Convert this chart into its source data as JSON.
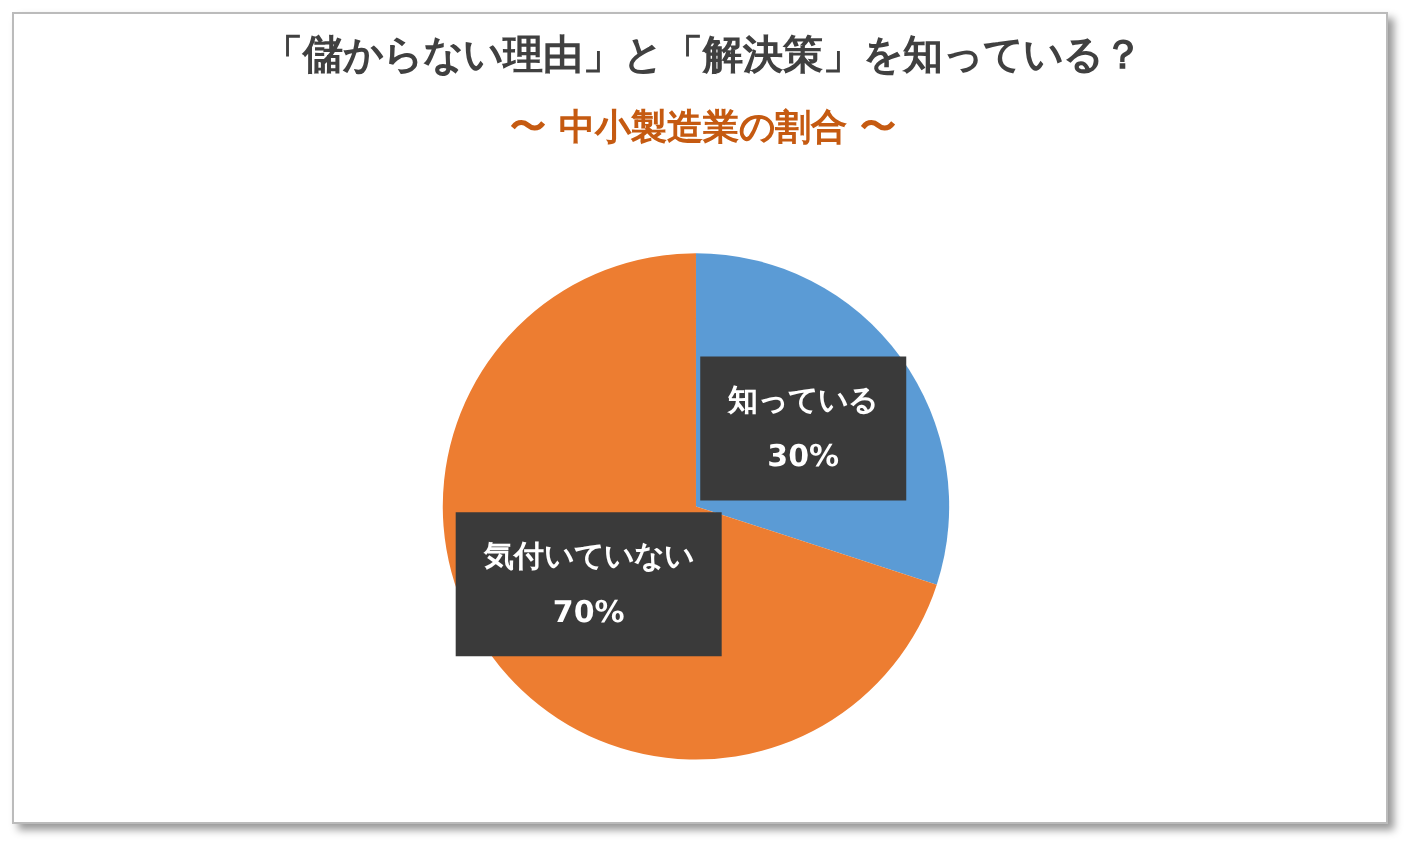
{
  "chart_data": {
    "type": "pie",
    "title": "「儲からない理由」と「解決策」を知っている？",
    "subtitle": "〜 中小製造業の割合 〜",
    "categories": [
      "知っている",
      "気付いていない"
    ],
    "values": [
      30,
      70
    ],
    "colors": [
      "#5b9bd5",
      "#ed7d31"
    ],
    "value_labels": [
      "30%",
      "70%"
    ],
    "legend": false
  }
}
